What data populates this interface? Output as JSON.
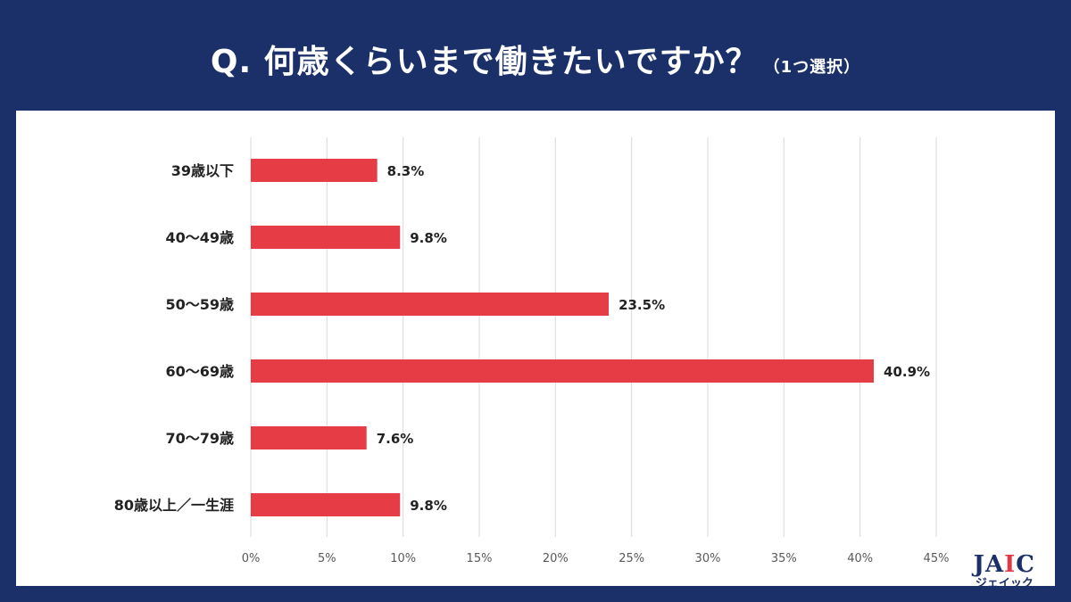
{
  "header": {
    "question": "Q.  何歳くらいまで働きたいですか？",
    "note": "（1つ選択）"
  },
  "chart_data": {
    "type": "bar",
    "orientation": "horizontal",
    "categories": [
      "39歳以下",
      "40〜49歳",
      "50〜59歳",
      "60〜69歳",
      "70〜79歳",
      "80歳以上／一生涯"
    ],
    "values": [
      8.3,
      9.8,
      23.5,
      40.9,
      7.6,
      9.8
    ],
    "value_labels": [
      "8.3%",
      "9.8%",
      "23.5%",
      "40.9%",
      "7.6%",
      "9.8%"
    ],
    "xlim": [
      0,
      45
    ],
    "xticks": [
      0,
      5,
      10,
      15,
      20,
      25,
      30,
      35,
      40,
      45
    ],
    "xtick_labels": [
      "0%",
      "5%",
      "10%",
      "15%",
      "20%",
      "25%",
      "30%",
      "35%",
      "40%",
      "45%"
    ],
    "grid": true,
    "bar_color": "#e53c46"
  },
  "logo": {
    "main_left": "JA",
    "main_i": "I",
    "main_right": "C",
    "sub": "ジェイック"
  }
}
